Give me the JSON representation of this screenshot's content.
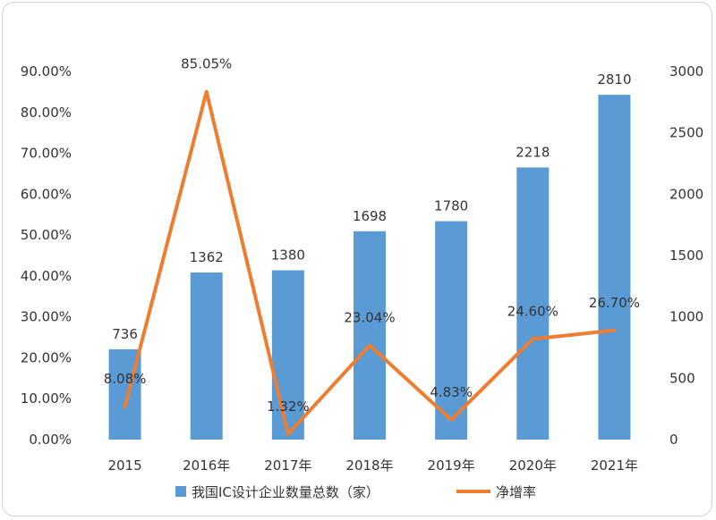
{
  "chart_data": {
    "type": "bar+line",
    "categories": [
      "2015",
      "2016年",
      "2017年",
      "2018年",
      "2019年",
      "2020年",
      "2021年"
    ],
    "series": [
      {
        "name": "我国IC设计企业数量总数（家）",
        "type": "bar",
        "axis": "right",
        "color": "#5b9bd5",
        "values": [
          736,
          1362,
          1380,
          1698,
          1780,
          2218,
          2810
        ],
        "labels": [
          "736",
          "1362",
          "1380",
          "1698",
          "1780",
          "2218",
          "2810"
        ]
      },
      {
        "name": "净增率",
        "type": "line",
        "axis": "left",
        "color": "#ed7d31",
        "values": [
          8.08,
          85.05,
          1.32,
          23.04,
          4.83,
          24.6,
          26.7
        ],
        "labels": [
          "8.08%",
          "85.05%",
          "1.32%",
          "23.04%",
          "4.83%",
          "24.60%",
          "26.70%"
        ]
      }
    ],
    "y_left": {
      "range": [
        0,
        90
      ],
      "ticks": [
        "0.00%",
        "10.00%",
        "20.00%",
        "30.00%",
        "40.00%",
        "50.00%",
        "60.00%",
        "70.00%",
        "80.00%",
        "90.00%"
      ]
    },
    "y_right": {
      "range": [
        0,
        3000
      ],
      "ticks": [
        "0",
        "500",
        "1000",
        "1500",
        "2000",
        "2500",
        "3000"
      ]
    },
    "legend": {
      "placement": "bottom"
    },
    "grid": false
  }
}
